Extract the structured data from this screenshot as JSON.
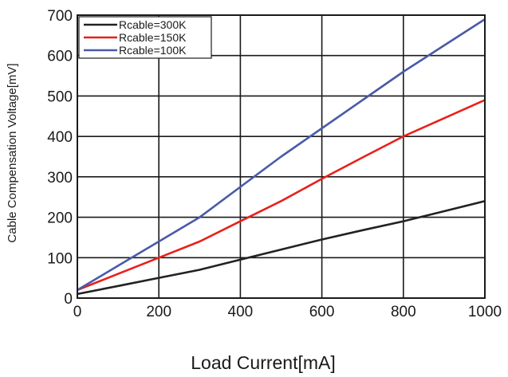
{
  "chart_data": {
    "type": "line",
    "title": "",
    "xlabel": "Load Current[mA]",
    "ylabel": "Cable Compensation Voltage[mV]",
    "xlim": [
      0,
      1000
    ],
    "ylim": [
      0,
      700
    ],
    "xticks": [
      0,
      200,
      400,
      600,
      800,
      1000
    ],
    "yticks": [
      0,
      100,
      200,
      300,
      400,
      500,
      600,
      700
    ],
    "grid": true,
    "legend_position": "top-left",
    "series": [
      {
        "name": "Rcable=300K",
        "color": "#222222",
        "x": [
          0,
          100,
          200,
          300,
          400,
          500,
          600,
          700,
          800,
          900,
          1000
        ],
        "y": [
          10,
          30,
          50,
          70,
          95,
          120,
          145,
          168,
          190,
          215,
          240
        ]
      },
      {
        "name": "Rcable=150K",
        "color": "#e8201a",
        "x": [
          0,
          100,
          200,
          300,
          400,
          500,
          600,
          700,
          800,
          900,
          1000
        ],
        "y": [
          20,
          60,
          100,
          140,
          190,
          240,
          295,
          348,
          400,
          445,
          490
        ]
      },
      {
        "name": "Rcable=100K",
        "color": "#4a5aa8",
        "x": [
          0,
          100,
          200,
          300,
          400,
          500,
          600,
          700,
          800,
          900,
          1000
        ],
        "y": [
          20,
          80,
          140,
          200,
          275,
          350,
          420,
          490,
          560,
          625,
          690
        ]
      }
    ]
  }
}
